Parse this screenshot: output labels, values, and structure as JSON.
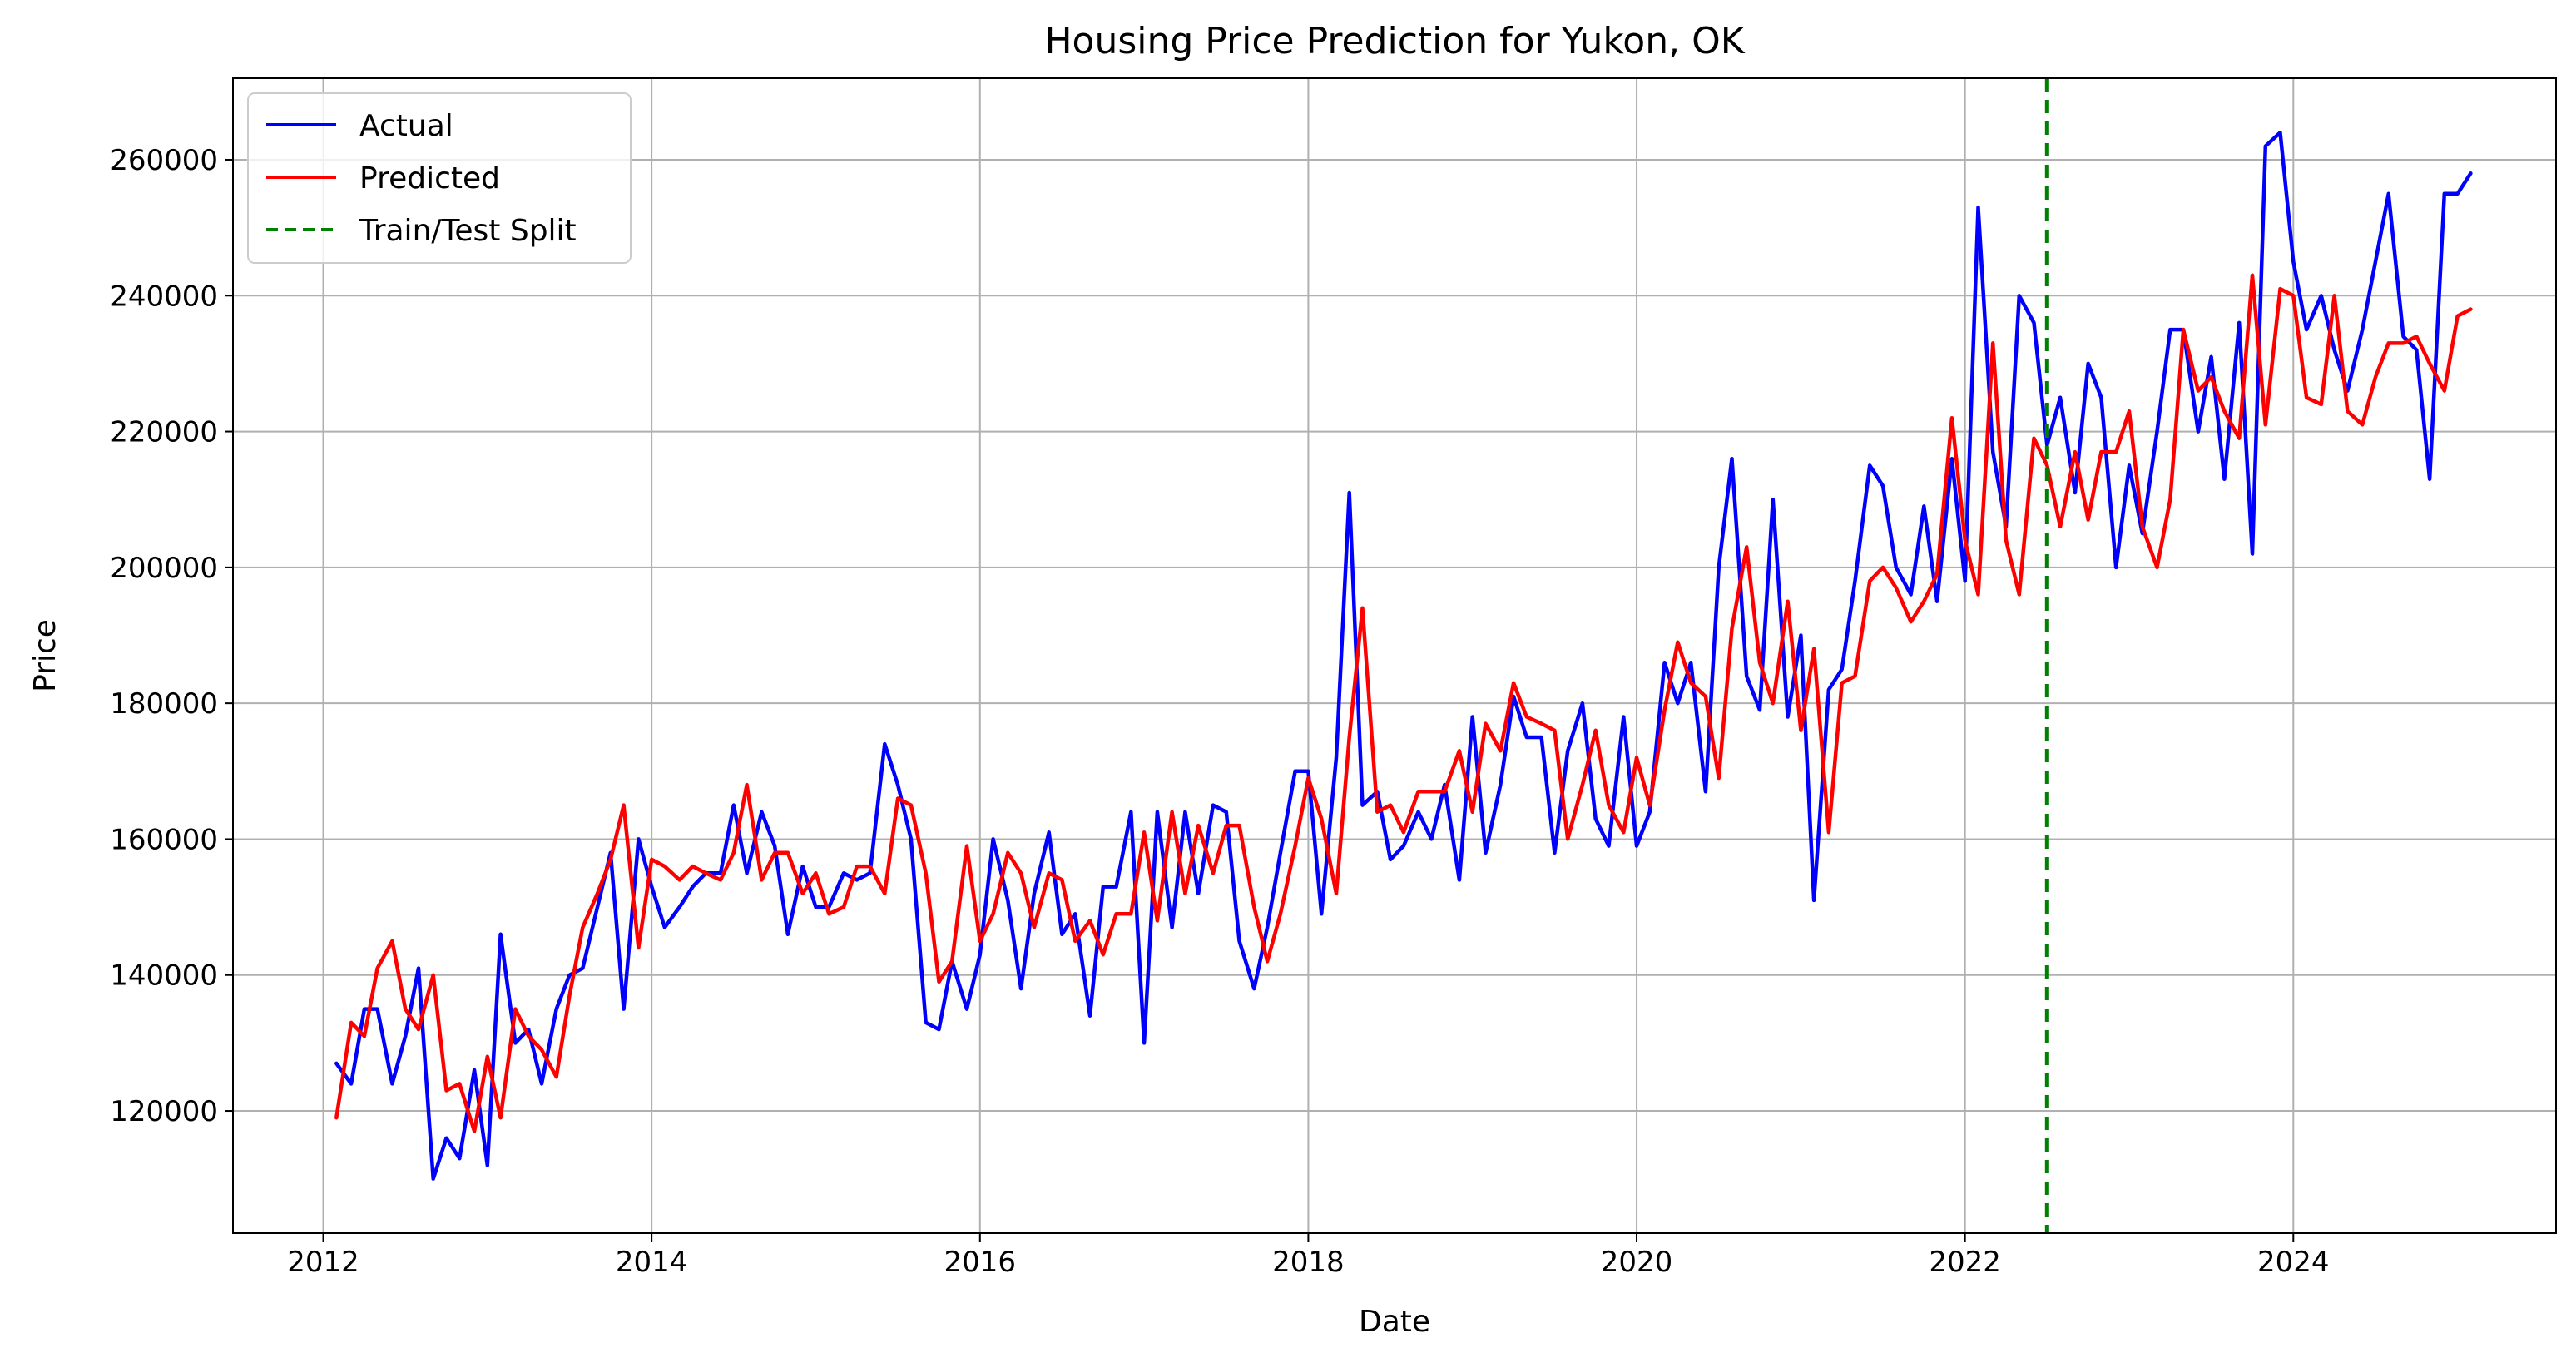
{
  "chart_data": {
    "type": "line",
    "title": "Housing Price Prediction for Yukon, OK",
    "xlabel": "Date",
    "ylabel": "Price",
    "xlim": [
      2011.45,
      2025.6
    ],
    "ylim": [
      102000,
      272000
    ],
    "grid": true,
    "legend_position": "top-left",
    "x_ticks": [
      2012,
      2014,
      2016,
      2018,
      2020,
      2022,
      2024
    ],
    "x_tick_labels": [
      "2012",
      "2014",
      "2016",
      "2018",
      "2020",
      "2022",
      "2024"
    ],
    "y_ticks": [
      120000,
      140000,
      160000,
      180000,
      200000,
      220000,
      240000,
      260000
    ],
    "y_tick_labels": [
      "120000",
      "140000",
      "160000",
      "180000",
      "200000",
      "220000",
      "240000",
      "260000"
    ],
    "split": {
      "name": "Train/Test Split",
      "x": 2022.5,
      "color": "#008000"
    },
    "series": [
      {
        "name": "Actual",
        "color": "#0000ff",
        "x": [
          2012.08,
          2012.17,
          2012.25,
          2012.33,
          2012.42,
          2012.5,
          2012.58,
          2012.67,
          2012.75,
          2012.83,
          2012.92,
          2013.0,
          2013.08,
          2013.17,
          2013.25,
          2013.33,
          2013.42,
          2013.5,
          2013.58,
          2013.67,
          2013.75,
          2013.83,
          2013.92,
          2014.0,
          2014.08,
          2014.17,
          2014.25,
          2014.33,
          2014.42,
          2014.5,
          2014.58,
          2014.67,
          2014.75,
          2014.83,
          2014.92,
          2015.0,
          2015.08,
          2015.17,
          2015.25,
          2015.33,
          2015.42,
          2015.5,
          2015.58,
          2015.67,
          2015.75,
          2015.83,
          2015.92,
          2016.0,
          2016.08,
          2016.17,
          2016.25,
          2016.33,
          2016.42,
          2016.5,
          2016.58,
          2016.67,
          2016.75,
          2016.83,
          2016.92,
          2017.0,
          2017.08,
          2017.17,
          2017.25,
          2017.33,
          2017.42,
          2017.5,
          2017.58,
          2017.67,
          2017.75,
          2017.83,
          2017.92,
          2018.0,
          2018.08,
          2018.17,
          2018.25,
          2018.33,
          2018.42,
          2018.5,
          2018.58,
          2018.67,
          2018.75,
          2018.83,
          2018.92,
          2019.0,
          2019.08,
          2019.17,
          2019.25,
          2019.33,
          2019.42,
          2019.5,
          2019.58,
          2019.67,
          2019.75,
          2019.83,
          2019.92,
          2020.0,
          2020.08,
          2020.17,
          2020.25,
          2020.33,
          2020.42,
          2020.5,
          2020.58,
          2020.67,
          2020.75,
          2020.83,
          2020.92,
          2021.0,
          2021.08,
          2021.17,
          2021.25,
          2021.33,
          2021.42,
          2021.5,
          2021.58,
          2021.67,
          2021.75,
          2021.83,
          2021.92,
          2022.0,
          2022.08,
          2022.17,
          2022.25,
          2022.33,
          2022.42,
          2022.5,
          2022.58,
          2022.67,
          2022.75,
          2022.83,
          2022.92,
          2023.0,
          2023.08,
          2023.17,
          2023.25,
          2023.33,
          2023.42,
          2023.5,
          2023.58,
          2023.67,
          2023.75,
          2023.83,
          2023.92,
          2024.0,
          2024.08,
          2024.17,
          2024.25,
          2024.33,
          2024.42,
          2024.5,
          2024.58,
          2024.67,
          2024.75,
          2024.83,
          2024.92,
          2025.0,
          2025.08
        ],
        "values": [
          127000,
          124000,
          135000,
          135000,
          124000,
          131000,
          141000,
          110000,
          116000,
          113000,
          126000,
          112000,
          146000,
          130000,
          132000,
          124000,
          135000,
          140000,
          141000,
          150000,
          158000,
          135000,
          160000,
          153000,
          147000,
          150000,
          153000,
          155000,
          155000,
          165000,
          155000,
          164000,
          159000,
          146000,
          156000,
          150000,
          150000,
          155000,
          154000,
          155000,
          174000,
          168000,
          160000,
          133000,
          132000,
          142000,
          135000,
          143000,
          160000,
          151000,
          138000,
          152000,
          161000,
          146000,
          149000,
          134000,
          153000,
          153000,
          164000,
          130000,
          164000,
          147000,
          164000,
          152000,
          165000,
          164000,
          145000,
          138000,
          147000,
          158000,
          170000,
          170000,
          149000,
          172000,
          211000,
          165000,
          167000,
          157000,
          159000,
          164000,
          160000,
          168000,
          154000,
          178000,
          158000,
          168000,
          181000,
          175000,
          175000,
          158000,
          173000,
          180000,
          163000,
          159000,
          178000,
          159000,
          164000,
          186000,
          180000,
          186000,
          167000,
          200000,
          216000,
          184000,
          179000,
          210000,
          178000,
          190000,
          151000,
          182000,
          185000,
          198000,
          215000,
          212000,
          200000,
          196000,
          209000,
          195000,
          216000,
          198000,
          253000,
          217000,
          206000,
          240000,
          236000,
          218000,
          225000,
          211000,
          230000,
          225000,
          200000,
          215000,
          205000,
          220000,
          235000,
          235000,
          220000,
          231000,
          213000,
          236000,
          202000,
          262000,
          264000,
          245000,
          235000,
          240000,
          232000,
          226000,
          235000,
          245000,
          255000,
          234000,
          232000,
          213000,
          255000,
          255000,
          258000
        ]
      },
      {
        "name": "Predicted",
        "color": "#ff0000",
        "x": [
          2012.08,
          2012.17,
          2012.25,
          2012.33,
          2012.42,
          2012.5,
          2012.58,
          2012.67,
          2012.75,
          2012.83,
          2012.92,
          2013.0,
          2013.08,
          2013.17,
          2013.25,
          2013.33,
          2013.42,
          2013.5,
          2013.58,
          2013.67,
          2013.75,
          2013.83,
          2013.92,
          2014.0,
          2014.08,
          2014.17,
          2014.25,
          2014.33,
          2014.42,
          2014.5,
          2014.58,
          2014.67,
          2014.75,
          2014.83,
          2014.92,
          2015.0,
          2015.08,
          2015.17,
          2015.25,
          2015.33,
          2015.42,
          2015.5,
          2015.58,
          2015.67,
          2015.75,
          2015.83,
          2015.92,
          2016.0,
          2016.08,
          2016.17,
          2016.25,
          2016.33,
          2016.42,
          2016.5,
          2016.58,
          2016.67,
          2016.75,
          2016.83,
          2016.92,
          2017.0,
          2017.08,
          2017.17,
          2017.25,
          2017.33,
          2017.42,
          2017.5,
          2017.58,
          2017.67,
          2017.75,
          2017.83,
          2017.92,
          2018.0,
          2018.08,
          2018.17,
          2018.25,
          2018.33,
          2018.42,
          2018.5,
          2018.58,
          2018.67,
          2018.75,
          2018.83,
          2018.92,
          2019.0,
          2019.08,
          2019.17,
          2019.25,
          2019.33,
          2019.42,
          2019.5,
          2019.58,
          2019.67,
          2019.75,
          2019.83,
          2019.92,
          2020.0,
          2020.08,
          2020.17,
          2020.25,
          2020.33,
          2020.42,
          2020.5,
          2020.58,
          2020.67,
          2020.75,
          2020.83,
          2020.92,
          2021.0,
          2021.08,
          2021.17,
          2021.25,
          2021.33,
          2021.42,
          2021.5,
          2021.58,
          2021.67,
          2021.75,
          2021.83,
          2021.92,
          2022.0,
          2022.08,
          2022.17,
          2022.25,
          2022.33,
          2022.42,
          2022.5,
          2022.58,
          2022.67,
          2022.75,
          2022.83,
          2022.92,
          2023.0,
          2023.08,
          2023.17,
          2023.25,
          2023.33,
          2023.42,
          2023.5,
          2023.58,
          2023.67,
          2023.75,
          2023.83,
          2023.92,
          2024.0,
          2024.08,
          2024.17,
          2024.25,
          2024.33,
          2024.42,
          2024.5,
          2024.58,
          2024.67,
          2024.75,
          2024.83,
          2024.92,
          2025.0,
          2025.08
        ],
        "values": [
          119000,
          133000,
          131000,
          141000,
          145000,
          135000,
          132000,
          140000,
          123000,
          124000,
          117000,
          128000,
          119000,
          135000,
          131000,
          129000,
          125000,
          137000,
          147000,
          152000,
          157000,
          165000,
          144000,
          157000,
          156000,
          154000,
          156000,
          155000,
          154000,
          158000,
          168000,
          154000,
          158000,
          158000,
          152000,
          155000,
          149000,
          150000,
          156000,
          156000,
          152000,
          166000,
          165000,
          155000,
          139000,
          142000,
          159000,
          145000,
          149000,
          158000,
          155000,
          147000,
          155000,
          154000,
          145000,
          148000,
          143000,
          149000,
          149000,
          161000,
          148000,
          164000,
          152000,
          162000,
          155000,
          162000,
          162000,
          150000,
          142000,
          149000,
          159000,
          169000,
          163000,
          152000,
          175000,
          194000,
          164000,
          165000,
          161000,
          167000,
          167000,
          167000,
          173000,
          164000,
          177000,
          173000,
          183000,
          178000,
          177000,
          176000,
          160000,
          168000,
          176000,
          165000,
          161000,
          172000,
          165000,
          179000,
          189000,
          183000,
          181000,
          169000,
          191000,
          203000,
          186000,
          180000,
          195000,
          176000,
          188000,
          161000,
          183000,
          184000,
          198000,
          200000,
          197000,
          192000,
          195000,
          199000,
          222000,
          204000,
          196000,
          233000,
          204000,
          196000,
          219000,
          215000,
          206000,
          217000,
          207000,
          217000,
          217000,
          223000,
          206000,
          200000,
          210000,
          235000,
          226000,
          228000,
          223000,
          219000,
          243000,
          221000,
          241000,
          240000,
          225000,
          224000,
          240000,
          223000,
          221000,
          228000,
          233000,
          233000,
          234000,
          230000,
          226000,
          237000,
          238000
        ]
      }
    ]
  }
}
